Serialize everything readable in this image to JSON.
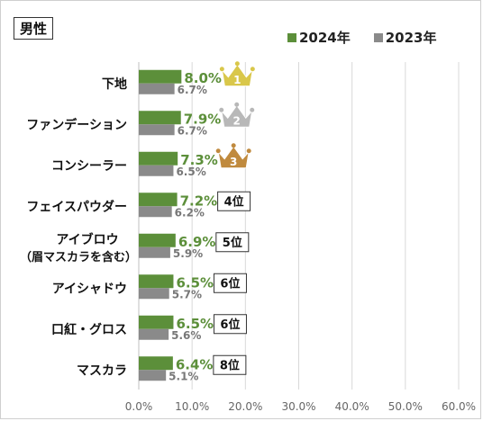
{
  "title": "男性",
  "legend": [
    {
      "label": "2024年",
      "color": "#5c8f3a"
    },
    {
      "label": "2023年",
      "color": "#8a8a8a"
    }
  ],
  "chart_data": {
    "type": "bar",
    "orientation": "horizontal",
    "categories": [
      "下地",
      "ファンデーション",
      "コンシーラー",
      "フェイスパウダー",
      "アイブロウ（眉マスカラを含む）",
      "アイシャドウ",
      "口紅・グロス",
      "マスカラ"
    ],
    "category_lines": [
      [
        "下地"
      ],
      [
        "ファンデーション"
      ],
      [
        "コンシーラー"
      ],
      [
        "フェイスパウダー"
      ],
      [
        "アイブロウ",
        "（眉マスカラを含む）"
      ],
      [
        "アイシャドウ"
      ],
      [
        "口紅・グロス"
      ],
      [
        "マスカラ"
      ]
    ],
    "series": [
      {
        "name": "2024年",
        "values": [
          8.0,
          7.9,
          7.3,
          7.2,
          6.9,
          6.5,
          6.5,
          6.4
        ],
        "labels": [
          "8.0%",
          "7.9%",
          "7.3%",
          "7.2%",
          "6.9%",
          "6.5%",
          "6.5%",
          "6.4%"
        ],
        "color": "#5c8f3a",
        "label_color": "#5c8f3a"
      },
      {
        "name": "2023年",
        "values": [
          6.7,
          6.7,
          6.5,
          6.2,
          5.9,
          5.7,
          5.6,
          5.1
        ],
        "labels": [
          "6.7%",
          "6.7%",
          "6.5%",
          "6.2%",
          "5.9%",
          "5.7%",
          "5.6%",
          "5.1%"
        ],
        "color": "#8a8a8a",
        "label_color": "#777777"
      }
    ],
    "ranks": [
      {
        "type": "crown",
        "text": "1",
        "color": "#d9c74a"
      },
      {
        "type": "crown",
        "text": "2",
        "color": "#b8b8b8"
      },
      {
        "type": "crown",
        "text": "3",
        "color": "#c08a3e"
      },
      {
        "type": "box",
        "text": "4位"
      },
      {
        "type": "box",
        "text": "5位"
      },
      {
        "type": "box",
        "text": "6位"
      },
      {
        "type": "box",
        "text": "6位"
      },
      {
        "type": "box",
        "text": "8位"
      }
    ],
    "x_ticks": [
      "0.0%",
      "10.0%",
      "20.0%",
      "30.0%",
      "40.0%",
      "50.0%",
      "60.0%"
    ],
    "xlim": [
      0,
      60
    ],
    "grid": true,
    "legend_position": "top-right"
  }
}
